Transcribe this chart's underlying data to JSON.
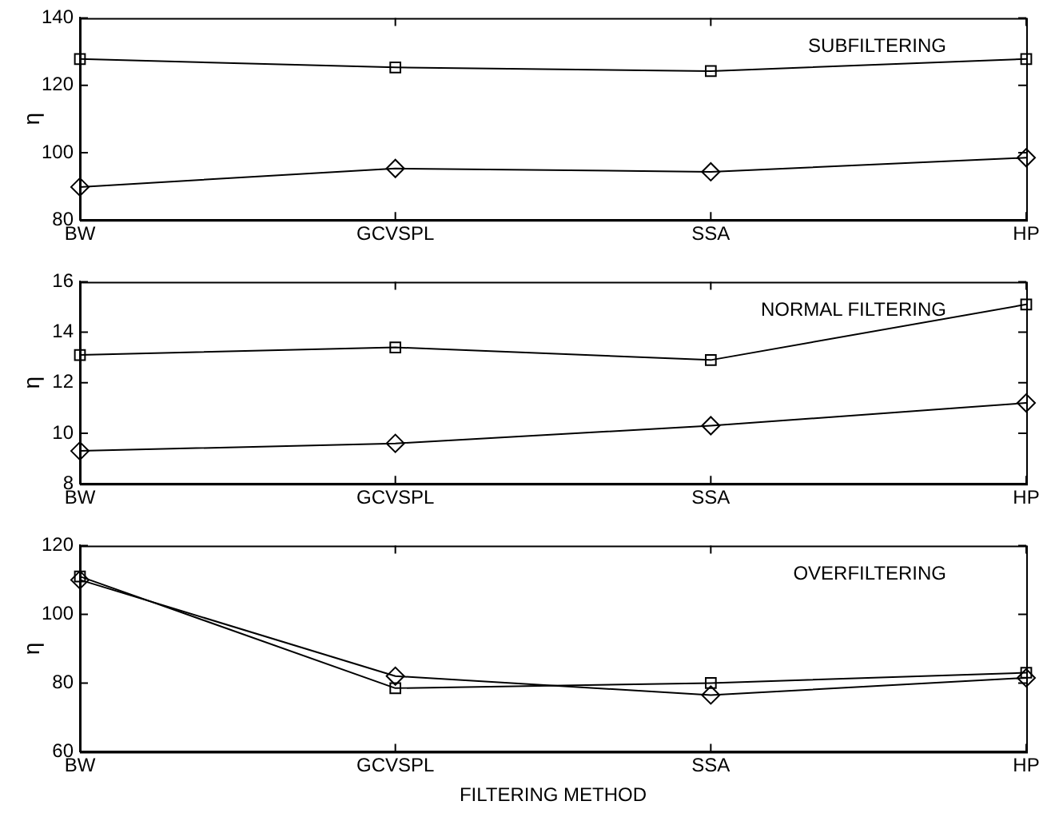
{
  "chart_data": [
    {
      "type": "line",
      "categories": [
        "BW",
        "GCVSPL",
        "SSA",
        "HP"
      ],
      "ylabel": "η",
      "ylim": [
        80,
        140
      ],
      "yticks": [
        80,
        100,
        120,
        140
      ],
      "grid": false,
      "legend": false,
      "annotations": [
        "SUBFILTERING"
      ],
      "series": [
        {
          "color": "#000000",
          "marker": "square",
          "values": [
            127.8,
            125.3,
            124.2,
            127.8
          ]
        },
        {
          "color": "#000000",
          "marker": "diamond",
          "values": [
            89.8,
            95.3,
            94.3,
            98.5
          ]
        }
      ]
    },
    {
      "type": "line",
      "categories": [
        "BW",
        "GCVSPL",
        "SSA",
        "HP"
      ],
      "ylabel": "η",
      "ylim": [
        8,
        16
      ],
      "yticks": [
        8,
        10,
        12,
        14,
        16
      ],
      "grid": false,
      "legend": false,
      "annotations": [
        "NORMAL FILTERING"
      ],
      "series": [
        {
          "color": "#000000",
          "marker": "square",
          "values": [
            13.1,
            13.4,
            12.9,
            15.1
          ]
        },
        {
          "color": "#000000",
          "marker": "diamond",
          "values": [
            9.3,
            9.6,
            10.3,
            11.2
          ]
        }
      ]
    },
    {
      "type": "line",
      "categories": [
        "BW",
        "GCVSPL",
        "SSA",
        "HP"
      ],
      "xlabel": "FILTERING METHOD",
      "ylabel": "η",
      "ylim": [
        60,
        120
      ],
      "yticks": [
        60,
        80,
        100,
        120
      ],
      "grid": false,
      "legend": false,
      "annotations": [
        "OVERFILTERING"
      ],
      "series": [
        {
          "color": "#000000",
          "marker": "square",
          "values": [
            111,
            78.5,
            80,
            83
          ]
        },
        {
          "color": "#000000",
          "marker": "diamond",
          "values": [
            110,
            82,
            76.5,
            81.5
          ]
        }
      ]
    }
  ]
}
